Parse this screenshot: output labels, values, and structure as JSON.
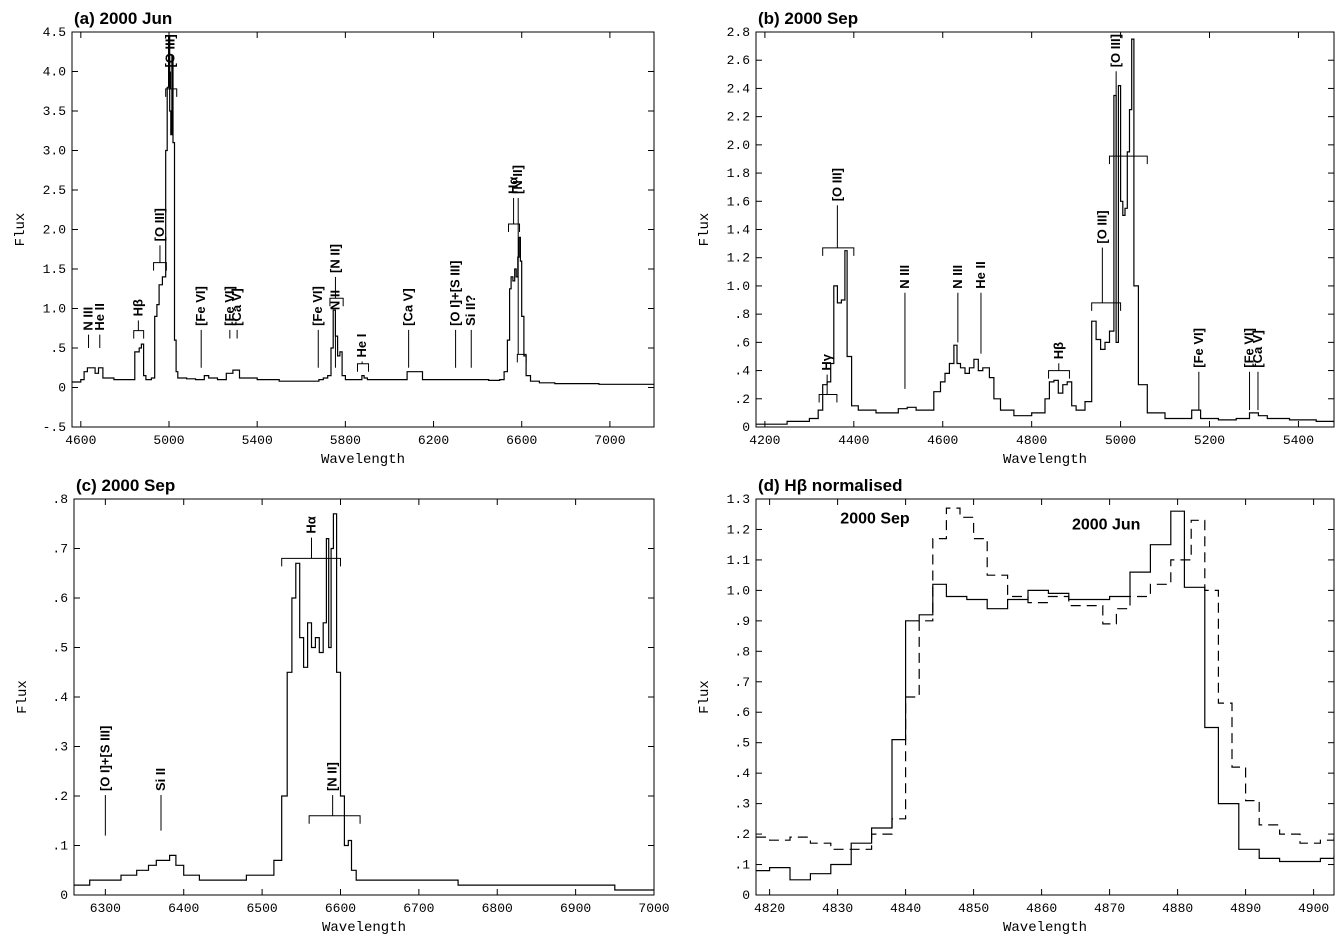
{
  "chart_data": [
    {
      "id": "a",
      "type": "line",
      "title": "(a) 2000 Jun",
      "xlabel": "Wavelength",
      "ylabel": "Flux",
      "xlim": [
        4560,
        7200
      ],
      "ylim": [
        -0.5,
        4.5
      ],
      "xticks": [
        4600,
        5000,
        5400,
        5800,
        6200,
        6600,
        7000
      ],
      "xticklabels": [
        "4600",
        "5000",
        "5400",
        "5800",
        "6200",
        "6600",
        "7000"
      ],
      "yticks": [
        -0.5,
        0,
        0.5,
        1.0,
        1.5,
        2.0,
        2.5,
        3.0,
        3.5,
        4.0,
        4.5
      ],
      "yticklabels": [
        "-.5",
        "0",
        ".5",
        "1.0",
        "1.5",
        "2.0",
        "2.5",
        "3.0",
        "3.5",
        "4.0",
        "4.5"
      ],
      "grid": false,
      "series": [
        {
          "style": "solid",
          "x": [
            4560,
            4600,
            4615,
            4630,
            4650,
            4665,
            4680,
            4700,
            4750,
            4800,
            4830,
            4845,
            4855,
            4865,
            4875,
            4885,
            4895,
            4920,
            4935,
            4945,
            4955,
            4970,
            4985,
            4992,
            4998,
            5003,
            5008,
            5013,
            5018,
            5025,
            5032,
            5040,
            5055,
            5080,
            5120,
            5160,
            5180,
            5220,
            5260,
            5290,
            5320,
            5400,
            5500,
            5600,
            5680,
            5700,
            5720,
            5735,
            5745,
            5755,
            5765,
            5775,
            5785,
            5800,
            5850,
            5875,
            5885,
            5900,
            5950,
            6050,
            6080,
            6150,
            6250,
            6300,
            6350,
            6450,
            6500,
            6520,
            6535,
            6545,
            6552,
            6560,
            6568,
            6575,
            6582,
            6588,
            6594,
            6600,
            6610,
            6620,
            6640,
            6680,
            6750,
            6850,
            6950,
            7050,
            7150,
            7200
          ],
          "y": [
            0.07,
            0.1,
            0.2,
            0.25,
            0.25,
            0.18,
            0.25,
            0.12,
            0.1,
            0.1,
            0.1,
            0.45,
            0.45,
            0.5,
            0.55,
            0.15,
            0.1,
            0.12,
            0.9,
            1.05,
            1.3,
            1.4,
            3.0,
            3.8,
            4.45,
            3.5,
            3.2,
            4.2,
            3.1,
            0.6,
            0.2,
            0.12,
            0.12,
            0.11,
            0.1,
            0.15,
            0.12,
            0.1,
            0.18,
            0.22,
            0.12,
            0.1,
            0.08,
            0.08,
            0.1,
            0.12,
            0.15,
            0.5,
            0.98,
            0.65,
            0.4,
            0.45,
            0.15,
            0.1,
            0.1,
            0.15,
            0.12,
            0.1,
            0.1,
            0.1,
            0.2,
            0.1,
            0.1,
            0.1,
            0.1,
            0.09,
            0.1,
            0.2,
            0.6,
            1.25,
            1.4,
            1.35,
            1.5,
            1.4,
            1.65,
            1.9,
            1.6,
            0.9,
            0.4,
            0.15,
            0.08,
            0.06,
            0.05,
            0.05,
            0.04,
            0.04,
            0.04,
            0.03
          ]
        }
      ],
      "annotations": [
        {
          "text": "N III",
          "x": 4635,
          "y": 0.72,
          "mark": "tick",
          "y2": 0.5
        },
        {
          "text": "He II",
          "x": 4686,
          "y": 0.72,
          "mark": "tick",
          "y2": 0.5
        },
        {
          "text": "Hβ",
          "x": 4861,
          "y": 0.9,
          "mark": "bracket",
          "x1": 4840,
          "x2": 4885,
          "yb": 0.72
        },
        {
          "text": "[O III]",
          "x": 4959,
          "y": 1.85,
          "mark": "bracket",
          "x1": 4930,
          "x2": 4988,
          "yb": 1.58
        },
        {
          "text": "[O III]",
          "x": 5007,
          "y": 4.05,
          "mark": "bracket",
          "x1": 4985,
          "x2": 5035,
          "yb": 3.78
        },
        {
          "text": "[Fe VI]",
          "x": 5146,
          "y": 0.78,
          "mark": "tick",
          "y2": 0.25
        },
        {
          "text": "[Fe VI]",
          "x": 5276,
          "y": 0.78,
          "mark": "tick",
          "y2": 0.62
        },
        {
          "text": "[Ca V]",
          "x": 5309,
          "y": 0.78,
          "mark": "tick",
          "y2": 0.62
        },
        {
          "text": "[Fe VI]",
          "x": 5677,
          "y": 0.78,
          "mark": "tick",
          "y2": 0.25
        },
        {
          "text": "N II",
          "x": 5755,
          "y": 0.98,
          "mark": "tick",
          "y2": 0.25
        },
        {
          "text": "[N II]",
          "x": 5755,
          "y": 1.45,
          "mark": "bracket",
          "x1": 5730,
          "x2": 5790,
          "yb": 1.13
        },
        {
          "text": "He I",
          "x": 5876,
          "y": 0.38,
          "mark": "bracket",
          "x1": 5855,
          "x2": 5905,
          "yb": 0.3
        },
        {
          "text": "[Ca V]",
          "x": 6087,
          "y": 0.78,
          "mark": "tick",
          "y2": 0.25
        },
        {
          "text": "[O I]+[S III]",
          "x": 6300,
          "y": 0.78,
          "mark": "tick",
          "y2": 0.25
        },
        {
          "text": "Si II?",
          "x": 6371,
          "y": 0.78,
          "mark": "tick",
          "y2": 0.25
        },
        {
          "text": "Hα",
          "x": 6563,
          "y": 2.45,
          "mark": "bracket",
          "x1": 6540,
          "x2": 6590,
          "yb": 2.07
        },
        {
          "text": "[N II]",
          "x": 6584,
          "y": 2.45,
          "mark": "bracket",
          "x1": 6580,
          "x2": 6620,
          "yb": 0.42
        }
      ]
    },
    {
      "id": "b",
      "type": "line",
      "title": "(b) 2000 Sep",
      "xlabel": "Wavelength",
      "ylabel": "Flux",
      "xlim": [
        4180,
        5480
      ],
      "ylim": [
        0,
        2.8
      ],
      "xticks": [
        4200,
        4400,
        4600,
        4800,
        5000,
        5200,
        5400
      ],
      "xticklabels": [
        "4200",
        "4400",
        "4600",
        "4800",
        "5000",
        "5200",
        "5400"
      ],
      "yticks": [
        0,
        0.2,
        0.4,
        0.6,
        0.8,
        1.0,
        1.2,
        1.4,
        1.6,
        1.8,
        2.0,
        2.2,
        2.4,
        2.6,
        2.8
      ],
      "yticklabels": [
        "0",
        ".2",
        ".4",
        ".6",
        ".8",
        "1.0",
        "1.2",
        "1.4",
        "1.6",
        "1.8",
        "2.0",
        "2.2",
        "2.4",
        "2.6",
        "2.8"
      ],
      "grid": false,
      "series": [
        {
          "style": "solid",
          "x": [
            4180,
            4250,
            4300,
            4320,
            4330,
            4340,
            4348,
            4355,
            4363,
            4372,
            4380,
            4385,
            4395,
            4410,
            4450,
            4480,
            4500,
            4520,
            4540,
            4560,
            4580,
            4595,
            4605,
            4615,
            4625,
            4632,
            4640,
            4650,
            4660,
            4670,
            4680,
            4690,
            4700,
            4705,
            4715,
            4730,
            4760,
            4800,
            4830,
            4840,
            4850,
            4860,
            4870,
            4880,
            4890,
            4900,
            4920,
            4935,
            4945,
            4955,
            4965,
            4975,
            4985,
            4990,
            4995,
            5000,
            5005,
            5010,
            5015,
            5020,
            5025,
            5030,
            5040,
            5060,
            5100,
            5140,
            5160,
            5180,
            5220,
            5260,
            5290,
            5310,
            5330,
            5380,
            5440,
            5480
          ],
          "y": [
            0.02,
            0.04,
            0.06,
            0.12,
            0.3,
            0.32,
            0.45,
            1.0,
            0.88,
            0.9,
            1.25,
            0.5,
            0.15,
            0.12,
            0.1,
            0.1,
            0.13,
            0.14,
            0.12,
            0.12,
            0.25,
            0.32,
            0.38,
            0.45,
            0.58,
            0.45,
            0.42,
            0.38,
            0.42,
            0.48,
            0.4,
            0.42,
            0.42,
            0.35,
            0.2,
            0.12,
            0.08,
            0.1,
            0.2,
            0.32,
            0.33,
            0.24,
            0.3,
            0.32,
            0.15,
            0.12,
            0.18,
            0.75,
            0.62,
            0.55,
            0.6,
            0.68,
            2.35,
            0.6,
            2.42,
            1.6,
            1.5,
            1.55,
            1.95,
            2.25,
            2.75,
            1.0,
            0.3,
            0.1,
            0.06,
            0.06,
            0.12,
            0.06,
            0.05,
            0.06,
            0.1,
            0.08,
            0.06,
            0.05,
            0.04,
            0.03
          ]
        }
      ],
      "annotations": [
        {
          "text": "Hγ",
          "x": 4340,
          "y": 0.4,
          "mark": "bracket",
          "x1": 4322,
          "x2": 4362,
          "yb": 0.23
        },
        {
          "text": "[O III]",
          "x": 4363,
          "y": 1.6,
          "mark": "bracket",
          "x1": 4330,
          "x2": 4400,
          "yb": 1.27
        },
        {
          "text": "N III",
          "x": 4515,
          "y": 0.98,
          "mark": "tick",
          "y2": 0.27
        },
        {
          "text": "N III",
          "x": 4634,
          "y": 0.98,
          "mark": "tick",
          "y2": 0.6
        },
        {
          "text": "He II",
          "x": 4686,
          "y": 0.98,
          "mark": "tick",
          "y2": 0.52
        },
        {
          "text": "Hβ",
          "x": 4861,
          "y": 0.48,
          "mark": "bracket",
          "x1": 4838,
          "x2": 4885,
          "yb": 0.4
        },
        {
          "text": "[O III]",
          "x": 4959,
          "y": 1.3,
          "mark": "bracket",
          "x1": 4935,
          "x2": 5000,
          "yb": 0.88
        },
        {
          "text": "[O III]",
          "x": 4990,
          "y": 2.55,
          "mark": "bracket",
          "x1": 4975,
          "x2": 5060,
          "yb": 1.92
        },
        {
          "text": "[Fe VI]",
          "x": 5176,
          "y": 0.42,
          "mark": "tick",
          "y2": 0.12
        },
        {
          "text": "[Fe VI]",
          "x": 5290,
          "y": 0.42,
          "mark": "tick",
          "y2": 0.12
        },
        {
          "text": "[Ca V]",
          "x": 5309,
          "y": 0.42,
          "mark": "tick",
          "y2": 0.12
        }
      ]
    },
    {
      "id": "c",
      "type": "line",
      "title": "(c) 2000 Sep",
      "xlabel": "Wavelength",
      "ylabel": "Flux",
      "xlim": [
        6260,
        7000
      ],
      "ylim": [
        0,
        0.8
      ],
      "xticks": [
        6300,
        6400,
        6500,
        6600,
        6700,
        6800,
        6900,
        7000
      ],
      "xticklabels": [
        "6300",
        "6400",
        "6500",
        "6600",
        "6700",
        "6800",
        "6900",
        "7000"
      ],
      "yticks": [
        0,
        0.1,
        0.2,
        0.3,
        0.4,
        0.5,
        0.6,
        0.7,
        0.8
      ],
      "yticklabels": [
        "0",
        ".1",
        ".2",
        ".3",
        ".4",
        ".5",
        ".6",
        ".7",
        ".8"
      ],
      "grid": false,
      "series": [
        {
          "style": "solid",
          "x": [
            6260,
            6280,
            6300,
            6320,
            6340,
            6355,
            6365,
            6375,
            6382,
            6390,
            6400,
            6420,
            6450,
            6480,
            6500,
            6515,
            6525,
            6532,
            6538,
            6543,
            6548,
            6553,
            6558,
            6563,
            6568,
            6573,
            6578,
            6582,
            6585,
            6588,
            6591,
            6595,
            6600,
            6605,
            6610,
            6614,
            6620,
            6650,
            6700,
            6750,
            6800,
            6850,
            6900,
            6950,
            7000
          ],
          "y": [
            0.02,
            0.03,
            0.03,
            0.04,
            0.05,
            0.06,
            0.07,
            0.07,
            0.08,
            0.06,
            0.04,
            0.03,
            0.03,
            0.04,
            0.04,
            0.07,
            0.2,
            0.45,
            0.6,
            0.67,
            0.52,
            0.46,
            0.55,
            0.5,
            0.52,
            0.49,
            0.55,
            0.72,
            0.5,
            0.7,
            0.77,
            0.45,
            0.2,
            0.1,
            0.11,
            0.05,
            0.03,
            0.03,
            0.03,
            0.02,
            0.02,
            0.02,
            0.02,
            0.01,
            0.01
          ]
        }
      ],
      "annotations": [
        {
          "text": "[O I]+[S III]",
          "x": 6300,
          "y": 0.21,
          "mark": "tick",
          "y2": 0.12
        },
        {
          "text": "Si II",
          "x": 6371,
          "y": 0.21,
          "mark": "tick",
          "y2": 0.13
        },
        {
          "text": "Hα",
          "x": 6563,
          "y": 0.73,
          "mark": "bracket",
          "x1": 6525,
          "x2": 6600,
          "yb": 0.68
        },
        {
          "text": "[N II]",
          "x": 6590,
          "y": 0.21,
          "mark": "bracket",
          "x1": 6560,
          "x2": 6625,
          "yb": 0.16
        }
      ]
    },
    {
      "id": "d",
      "type": "line",
      "title": "(d) Hβ normalised",
      "xlabel": "Wavelength",
      "ylabel": "Flux",
      "xlim": [
        4818,
        4903
      ],
      "ylim": [
        0,
        1.3
      ],
      "xticks": [
        4820,
        4830,
        4840,
        4850,
        4860,
        4870,
        4880,
        4890,
        4900
      ],
      "xticklabels": [
        "4820",
        "4830",
        "4840",
        "4850",
        "4860",
        "4870",
        "4880",
        "4890",
        "4900"
      ],
      "yticks": [
        0,
        0.1,
        0.2,
        0.3,
        0.4,
        0.5,
        0.6,
        0.7,
        0.8,
        0.9,
        1.0,
        1.1,
        1.2,
        1.3
      ],
      "yticklabels": [
        "0",
        ".1",
        ".2",
        ".3",
        ".4",
        ".5",
        ".6",
        ".7",
        ".8",
        ".9",
        "1.0",
        "1.1",
        "1.2",
        "1.3"
      ],
      "grid": false,
      "series": [
        {
          "name": "2000 Jun",
          "style": "solid",
          "x": [
            4818,
            4820,
            4823,
            4826,
            4829,
            4832,
            4835,
            4838,
            4840,
            4842,
            4844,
            4846,
            4849,
            4852,
            4855,
            4858,
            4861,
            4864,
            4867,
            4870,
            4873,
            4876,
            4879,
            4881,
            4884,
            4886,
            4889,
            4892,
            4895,
            4898,
            4901,
            4903
          ],
          "y": [
            0.08,
            0.09,
            0.05,
            0.07,
            0.1,
            0.17,
            0.22,
            0.51,
            0.9,
            0.92,
            1.02,
            0.98,
            0.97,
            0.94,
            0.97,
            1.0,
            0.99,
            0.97,
            0.97,
            0.98,
            1.06,
            1.15,
            1.26,
            1.01,
            0.55,
            0.3,
            0.15,
            0.12,
            0.11,
            0.11,
            0.12,
            0.13
          ]
        },
        {
          "name": "2000 Sep",
          "style": "dashed",
          "x": [
            4818,
            4820,
            4823,
            4826,
            4829,
            4832,
            4835,
            4838,
            4840,
            4842,
            4844,
            4846,
            4848,
            4850,
            4852,
            4855,
            4858,
            4861,
            4864,
            4867,
            4869,
            4871,
            4873,
            4876,
            4879,
            4882,
            4884,
            4886,
            4888,
            4890,
            4892,
            4895,
            4898,
            4901,
            4903
          ],
          "y": [
            0.19,
            0.18,
            0.19,
            0.17,
            0.15,
            0.15,
            0.2,
            0.25,
            0.65,
            0.9,
            1.17,
            1.27,
            1.24,
            1.17,
            1.05,
            0.98,
            0.96,
            0.98,
            0.95,
            0.95,
            0.89,
            0.94,
            0.98,
            1.02,
            1.1,
            1.23,
            1.0,
            0.63,
            0.42,
            0.31,
            0.23,
            0.2,
            0.17,
            0.18,
            0.19
          ]
        }
      ],
      "labels": [
        {
          "text": "2000 Sep",
          "x": 4835.5,
          "y": 1.22
        },
        {
          "text": "2000 Jun",
          "x": 4869.5,
          "y": 1.2
        }
      ]
    }
  ]
}
